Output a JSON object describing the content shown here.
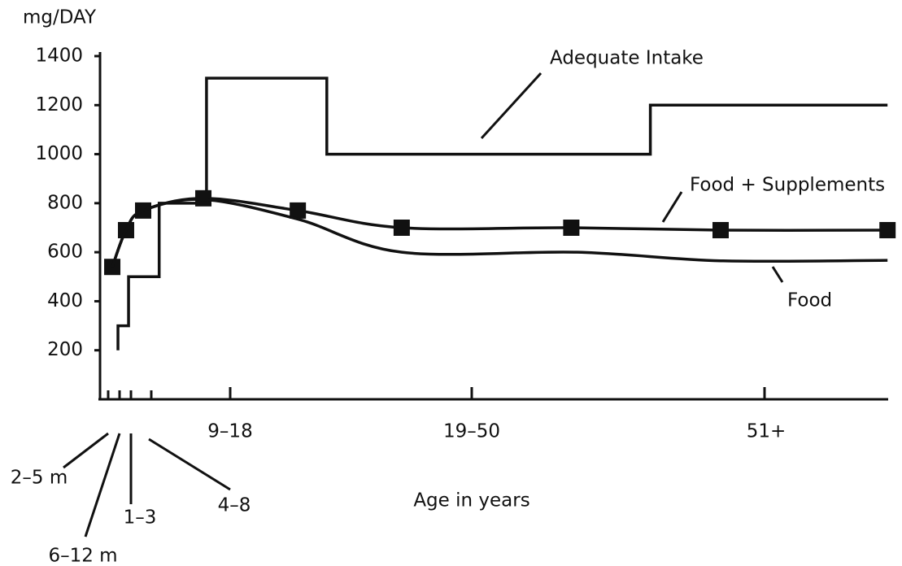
{
  "chart_data": {
    "type": "line",
    "y_label": "mg/DAY",
    "x_label": "Age in years",
    "categories": [
      "2–5 m",
      "6–12 m",
      "1–3",
      "4–8",
      "9–18",
      "19–50",
      "51+"
    ],
    "xlim": [
      -0.93,
      6.42
    ],
    "ylim": [
      0,
      1400
    ],
    "yticks": [
      200,
      400,
      600,
      800,
      1000,
      1200,
      1400
    ],
    "series": [
      {
        "name": "Adequate Intake",
        "color": "#111111",
        "style": "step",
        "x": [
          0.86,
          0.86,
          1.79,
          1.79,
          3.1,
          3.1,
          3.7,
          3.7,
          4.4,
          4.4,
          5.61,
          5.61,
          6.42
        ],
        "values": [
          200,
          300,
          300,
          500,
          500,
          800,
          800,
          1310,
          1310,
          1000,
          1000,
          1200,
          1200
        ]
      },
      {
        "name": "Food + Supplements",
        "color": "#111111",
        "style": "smooth",
        "markers": true,
        "x": [
          0.36,
          1.57,
          2.6,
          3.66,
          4.28,
          4.71,
          5.34,
          5.85,
          6.42
        ],
        "values": [
          540,
          690,
          770,
          820,
          770,
          700,
          700,
          690,
          690
        ]
      },
      {
        "name": "Food",
        "color": "#111111",
        "style": "smooth",
        "x": [
          0.36,
          1.57,
          2.6,
          3.66,
          4.28,
          4.71,
          5.36,
          5.85,
          6.42
        ],
        "values": [
          540,
          690,
          770,
          815,
          735,
          600,
          600,
          565,
          567
        ]
      }
    ]
  }
}
